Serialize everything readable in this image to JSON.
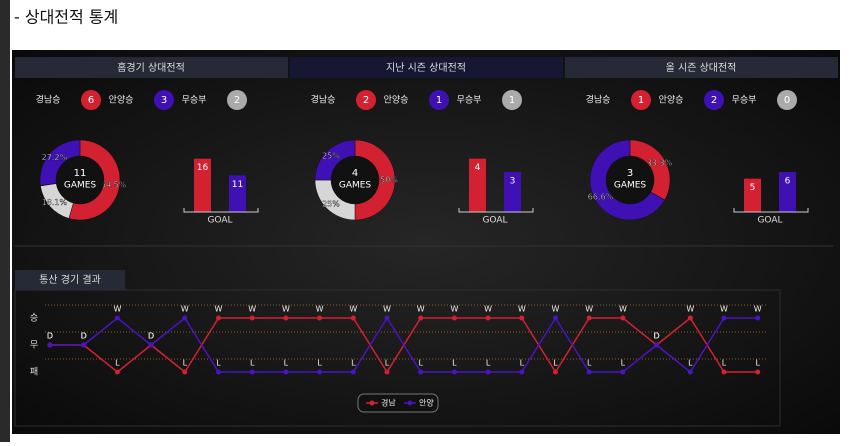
{
  "title": "- 상대전적 통계",
  "tabs": [
    "홈경기 상대전적",
    "지난 시즌 상대전적",
    "올 시즌 상대전적"
  ],
  "colors": [
    "#d42131",
    "#3f10b3",
    "#d6d6d6"
  ],
  "summaries": [
    {
      "legend": [
        {
          "label": "경남승",
          "count": 6
        },
        {
          "label": "안양승",
          "count": 3
        },
        {
          "label": "무승부",
          "count": 2
        }
      ],
      "donut": {
        "type": "pie",
        "total": 11,
        "center_label": "GAMES",
        "values": [
          54.5,
          27.2,
          18.1
        ],
        "value_labels": [
          "54.5%",
          "27.2%",
          "18.1%"
        ]
      },
      "goals": {
        "type": "bar",
        "label": "GOAL",
        "values": [
          16,
          11
        ],
        "ylim": [
          0,
          18
        ]
      }
    },
    {
      "legend": [
        {
          "label": "경남승",
          "count": 2
        },
        {
          "label": "안양승",
          "count": 1
        },
        {
          "label": "무승부",
          "count": 1
        }
      ],
      "donut": {
        "type": "pie",
        "total": 4,
        "center_label": "GAMES",
        "values": [
          50,
          25,
          25
        ],
        "value_labels": [
          "50%",
          "25%",
          "25%"
        ]
      },
      "goals": {
        "type": "bar",
        "label": "GOAL",
        "values": [
          4,
          3
        ],
        "ylim": [
          0,
          4.5
        ]
      }
    },
    {
      "legend": [
        {
          "label": "경남승",
          "count": 1
        },
        {
          "label": "안양승",
          "count": 2
        },
        {
          "label": "무승부",
          "count": 0
        }
      ],
      "donut": {
        "type": "pie",
        "total": 3,
        "center_label": "GAMES",
        "values": [
          33.3,
          66.6,
          0
        ],
        "value_labels": [
          "33.3%",
          "66.6%",
          null
        ]
      },
      "goals": {
        "type": "bar",
        "label": "GOAL",
        "values": [
          5,
          6
        ],
        "ylim": [
          0,
          9
        ]
      }
    }
  ],
  "history_tab": "통산 경기 결과",
  "chart_data": {
    "type": "line",
    "y_categories": [
      {
        "value": "W",
        "label": "승"
      },
      {
        "value": "D",
        "label": "무"
      },
      {
        "value": "L",
        "label": "패"
      }
    ],
    "series": [
      {
        "name": "경남",
        "color": "#d42131",
        "values": [
          "D",
          "D",
          "L",
          "D",
          "L",
          "W",
          "W",
          "W",
          "W",
          "W",
          "L",
          "W",
          "W",
          "W",
          "W",
          "L",
          "W",
          "W",
          "D",
          "W",
          "L",
          "L"
        ]
      },
      {
        "name": "안양",
        "color": "#4a14c2",
        "values": [
          "D",
          "D",
          "W",
          "D",
          "W",
          "L",
          "L",
          "L",
          "L",
          "L",
          "W",
          "L",
          "L",
          "L",
          "L",
          "W",
          "L",
          "L",
          "D",
          "L",
          "W",
          "W"
        ]
      }
    ]
  }
}
